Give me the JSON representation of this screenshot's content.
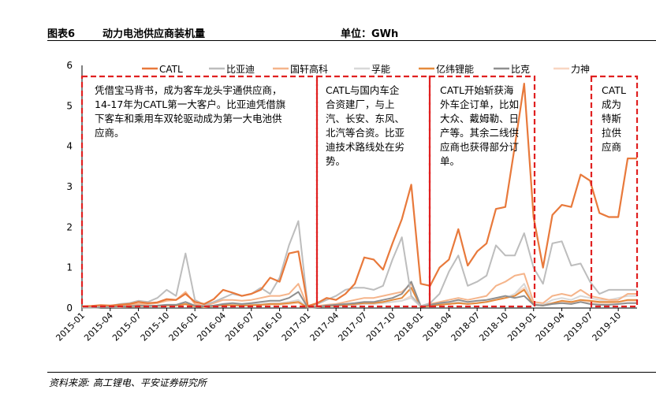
{
  "header": {
    "figure_no": "图表6",
    "title": "动力电池供应商装机量",
    "unit": "单位：GWh"
  },
  "source": "资料来源: 高工锂电、平安证券研究所",
  "colors": {
    "CATL": "#e8793b",
    "比亚迪": "#bdbdbd",
    "国轩高科": "#f5b48a",
    "孚能": "#d8d8d8",
    "亿纬锂能": "#e58a3c",
    "比克": "#8f8f8f",
    "力神": "#f8d6c1",
    "box": "#e02020"
  },
  "annotations": [
    {
      "lines": [
        "凭借宝马背书，成为客车龙头宇通供应商，",
        "14-17年为CATL第一大客户。比亚迪凭借旗",
        "下客车和乘用车双轮驱动成为第一大电池供",
        "应商。"
      ]
    },
    {
      "lines": [
        "CATL与国内车企",
        "合资建厂，与上",
        "汽、长安、东风、",
        "北汽等合资。比亚",
        "迪技术路线处在劣",
        "势。"
      ]
    },
    {
      "lines": [
        "CATL开始斩获海",
        "外车企订单，比如",
        "大众、戴姆勒、日",
        "产等。其余二线供",
        "应商也获得部分订",
        "单。"
      ]
    },
    {
      "lines": [
        "CATL",
        "成为",
        "特斯",
        "拉供",
        "应商"
      ]
    }
  ],
  "chart_data": {
    "type": "line",
    "title": "",
    "xlabel": "",
    "ylabel": "",
    "ylim": [
      0,
      6
    ],
    "yticks": [
      0,
      1,
      2,
      3,
      4,
      5,
      6
    ],
    "legend": "top",
    "grid": false,
    "x": [
      "2015-01",
      "2015-02",
      "2015-03",
      "2015-04",
      "2015-05",
      "2015-06",
      "2015-07",
      "2015-08",
      "2015-09",
      "2015-10",
      "2015-11",
      "2015-12",
      "2016-01",
      "2016-02",
      "2016-03",
      "2016-04",
      "2016-05",
      "2016-06",
      "2016-07",
      "2016-08",
      "2016-09",
      "2016-10",
      "2016-11",
      "2016-12",
      "2017-01",
      "2017-02",
      "2017-03",
      "2017-04",
      "2017-05",
      "2017-06",
      "2017-07",
      "2017-08",
      "2017-09",
      "2017-10",
      "2017-11",
      "2017-12",
      "2018-01",
      "2018-02",
      "2018-03",
      "2018-04",
      "2018-05",
      "2018-06",
      "2018-07",
      "2018-08",
      "2018-09",
      "2018-10",
      "2018-11",
      "2018-12",
      "2019-01",
      "2019-02",
      "2019-03",
      "2019-04",
      "2019-05",
      "2019-06",
      "2019-07",
      "2019-08",
      "2019-09",
      "2019-10",
      "2019-11",
      "2019-12"
    ],
    "x_tick_labels": [
      "2015-01",
      "2015-04",
      "2015-07",
      "2015-10",
      "2016-01",
      "2016-04",
      "2016-07",
      "2016-10",
      "2017-01",
      "2017-04",
      "2017-07",
      "2017-10",
      "2018-01",
      "2018-04",
      "2018-07",
      "2018-10",
      "2019-01",
      "2019-04",
      "2019-07",
      "2019-10"
    ],
    "series": [
      {
        "name": "CATL",
        "values": [
          0.04,
          0.05,
          0.07,
          0.06,
          0.08,
          0.1,
          0.15,
          0.12,
          0.14,
          0.22,
          0.2,
          0.35,
          0.15,
          0.1,
          0.22,
          0.45,
          0.38,
          0.3,
          0.35,
          0.45,
          0.75,
          0.65,
          1.35,
          1.4,
          0.05,
          0.12,
          0.25,
          0.2,
          0.35,
          0.6,
          1.25,
          1.2,
          0.95,
          1.6,
          2.2,
          3.05,
          0.6,
          0.55,
          1.0,
          1.2,
          1.95,
          1.05,
          1.4,
          1.6,
          2.45,
          2.5,
          4.0,
          5.55,
          2.25,
          1.0,
          2.3,
          2.55,
          2.5,
          3.3,
          3.15,
          2.35,
          2.25,
          2.25,
          3.7,
          3.7
        ]
      },
      {
        "name": "比亚迪",
        "values": [
          0.02,
          0.03,
          0.05,
          0.05,
          0.1,
          0.12,
          0.18,
          0.15,
          0.25,
          0.45,
          0.3,
          1.35,
          0.2,
          0.08,
          0.15,
          0.25,
          0.35,
          0.3,
          0.35,
          0.5,
          0.35,
          0.75,
          1.55,
          2.15,
          0.03,
          0.1,
          0.2,
          0.3,
          0.45,
          0.5,
          0.5,
          0.45,
          0.55,
          1.2,
          1.75,
          0.3,
          0.05,
          0.12,
          0.35,
          0.9,
          1.3,
          0.55,
          0.65,
          0.8,
          1.55,
          1.3,
          1.3,
          1.85,
          1.0,
          0.6,
          1.6,
          1.65,
          1.05,
          1.1,
          0.65,
          0.35,
          0.45,
          0.45,
          0.45,
          0.45
        ]
      },
      {
        "name": "国轩高科",
        "values": [
          0.02,
          0.03,
          0.04,
          0.04,
          0.06,
          0.08,
          0.1,
          0.1,
          0.12,
          0.18,
          0.2,
          0.4,
          0.1,
          0.05,
          0.12,
          0.2,
          0.2,
          0.18,
          0.2,
          0.25,
          0.3,
          0.3,
          0.35,
          0.6,
          0.02,
          0.05,
          0.08,
          0.1,
          0.15,
          0.2,
          0.25,
          0.25,
          0.3,
          0.35,
          0.4,
          0.6,
          0.05,
          0.1,
          0.15,
          0.2,
          0.25,
          0.2,
          0.25,
          0.3,
          0.55,
          0.65,
          0.8,
          0.85,
          0.15,
          0.12,
          0.3,
          0.35,
          0.3,
          0.45,
          0.3,
          0.25,
          0.2,
          0.2,
          0.35,
          0.35
        ]
      },
      {
        "name": "孚能",
        "values": [
          0.01,
          0.01,
          0.02,
          0.02,
          0.03,
          0.04,
          0.05,
          0.05,
          0.06,
          0.08,
          0.08,
          0.1,
          0.05,
          0.03,
          0.05,
          0.08,
          0.08,
          0.08,
          0.1,
          0.1,
          0.12,
          0.12,
          0.15,
          0.2,
          0.01,
          0.02,
          0.04,
          0.05,
          0.06,
          0.08,
          0.1,
          0.1,
          0.12,
          0.15,
          0.18,
          0.25,
          0.03,
          0.05,
          0.1,
          0.12,
          0.15,
          0.1,
          0.12,
          0.15,
          0.25,
          0.25,
          0.35,
          0.6,
          0.1,
          0.08,
          0.2,
          0.25,
          0.2,
          0.3,
          0.25,
          0.2,
          0.2,
          0.25,
          0.3,
          0.3
        ]
      },
      {
        "name": "亿纬锂能",
        "values": [
          0.01,
          0.02,
          0.02,
          0.03,
          0.03,
          0.04,
          0.05,
          0.05,
          0.05,
          0.06,
          0.06,
          0.1,
          0.04,
          0.03,
          0.05,
          0.07,
          0.07,
          0.06,
          0.07,
          0.08,
          0.1,
          0.1,
          0.12,
          0.15,
          0.01,
          0.03,
          0.05,
          0.06,
          0.08,
          0.1,
          0.12,
          0.12,
          0.15,
          0.2,
          0.25,
          0.5,
          0.03,
          0.05,
          0.08,
          0.1,
          0.12,
          0.1,
          0.12,
          0.15,
          0.2,
          0.25,
          0.3,
          0.45,
          0.08,
          0.06,
          0.12,
          0.18,
          0.15,
          0.2,
          0.18,
          0.15,
          0.15,
          0.15,
          0.2,
          0.2
        ]
      },
      {
        "name": "比克",
        "values": [
          0.01,
          0.01,
          0.02,
          0.02,
          0.03,
          0.04,
          0.06,
          0.05,
          0.06,
          0.08,
          0.08,
          0.15,
          0.06,
          0.04,
          0.06,
          0.1,
          0.12,
          0.1,
          0.12,
          0.15,
          0.18,
          0.18,
          0.25,
          0.4,
          0.01,
          0.03,
          0.06,
          0.08,
          0.1,
          0.12,
          0.15,
          0.15,
          0.2,
          0.25,
          0.35,
          0.65,
          0.05,
          0.08,
          0.12,
          0.15,
          0.2,
          0.15,
          0.18,
          0.2,
          0.25,
          0.3,
          0.25,
          0.3,
          0.08,
          0.06,
          0.1,
          0.12,
          0.1,
          0.15,
          0.1,
          0.08,
          0.08,
          0.1,
          0.12,
          0.12
        ]
      },
      {
        "name": "力神",
        "values": [
          0.01,
          0.01,
          0.02,
          0.02,
          0.02,
          0.03,
          0.04,
          0.04,
          0.05,
          0.06,
          0.06,
          0.08,
          0.04,
          0.02,
          0.04,
          0.06,
          0.06,
          0.05,
          0.06,
          0.07,
          0.08,
          0.08,
          0.1,
          0.12,
          0.01,
          0.02,
          0.04,
          0.05,
          0.06,
          0.08,
          0.1,
          0.1,
          0.12,
          0.15,
          0.18,
          0.3,
          0.03,
          0.05,
          0.08,
          0.1,
          0.12,
          0.1,
          0.12,
          0.15,
          0.2,
          0.25,
          0.35,
          0.5,
          0.1,
          0.08,
          0.12,
          0.15,
          0.12,
          0.18,
          0.15,
          0.12,
          0.12,
          0.15,
          0.18,
          0.18
        ]
      }
    ]
  }
}
